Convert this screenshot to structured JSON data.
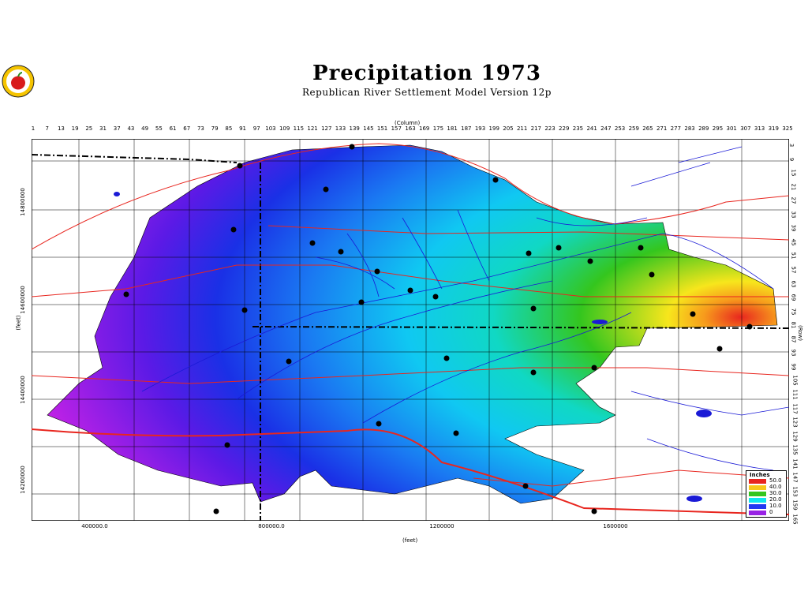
{
  "title": "Precipitation  1973",
  "subtitle": "Republican River Settlement Model Version 12p",
  "logo_icon": "apple-icon",
  "column_axis": {
    "title": "(Column)",
    "ticks": [
      "1",
      "7",
      "13",
      "19",
      "25",
      "31",
      "37",
      "43",
      "49",
      "55",
      "61",
      "67",
      "73",
      "79",
      "85",
      "91",
      "97",
      "103",
      "109",
      "115",
      "121",
      "127",
      "133",
      "139",
      "145",
      "151",
      "157",
      "163",
      "169",
      "175",
      "181",
      "187",
      "193",
      "199",
      "205",
      "211",
      "217",
      "223",
      "229",
      "235",
      "241",
      "247",
      "253",
      "259",
      "265",
      "271",
      "277",
      "283",
      "289",
      "295",
      "301",
      "307",
      "313",
      "319",
      "325"
    ]
  },
  "row_axis": {
    "title": "(Row)",
    "ticks": [
      "3",
      "9",
      "15",
      "21",
      "27",
      "33",
      "39",
      "45",
      "51",
      "57",
      "63",
      "69",
      "75",
      "81",
      "87",
      "93",
      "99",
      "105",
      "111",
      "117",
      "123",
      "129",
      "135",
      "141",
      "147",
      "153",
      "159",
      "165"
    ]
  },
  "x_axis": {
    "label": "(feet)",
    "ticks": [
      "400000.0",
      "800000.0",
      "1200000",
      "1600000"
    ]
  },
  "y_axis": {
    "label": "(feet)",
    "ticks": [
      "14800000",
      "14600000",
      "14400000",
      "14200000"
    ]
  },
  "legend": {
    "title": "Inches",
    "items": [
      {
        "label": "50.0",
        "color": "#e8261f"
      },
      {
        "label": "40.0",
        "color": "#f7c81c"
      },
      {
        "label": "30.0",
        "color": "#34c61e"
      },
      {
        "label": "20.0",
        "color": "#10e6ef"
      },
      {
        "label": "10.0",
        "color": "#2238f2"
      },
      {
        "label": "0",
        "color": "#9922e5"
      }
    ]
  },
  "colors": {
    "roads": "#e8261f",
    "streams": "#1a1ad6",
    "stations": "#000000"
  }
}
